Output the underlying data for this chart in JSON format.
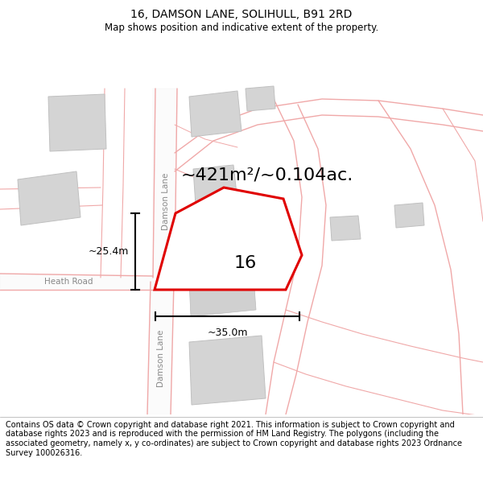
{
  "title": "16, DAMSON LANE, SOLIHULL, B91 2RD",
  "subtitle": "Map shows position and indicative extent of the property.",
  "footer_text": "Contains OS data © Crown copyright and database right 2021. This information is subject to Crown copyright and database rights 2023 and is reproduced with the permission of HM Land Registry. The polygons (including the associated geometry, namely x, y co-ordinates) are subject to Crown copyright and database rights 2023 Ordnance Survey 100026316.",
  "area_text": "~421m²/~0.104ac.",
  "label_16": "16",
  "dim_width": "~35.0m",
  "dim_height": "~25.4m",
  "street_label_upper": "Damson Lane",
  "street_label_lower": "Damson Lane",
  "heath_road_label": "Heath Road",
  "bg_color": "#ffffff",
  "map_bg": "#ffffff",
  "road_color": "#f0a8a8",
  "building_color": "#d4d4d4",
  "building_edge": "#c0c0c0",
  "plot_line_color": "#e00000",
  "plot_fill_color": "#ffffff",
  "dim_line_color": "#000000",
  "title_fontsize": 10,
  "subtitle_fontsize": 8.5,
  "footer_fontsize": 7.0,
  "area_fontsize": 16,
  "label_16_fontsize": 16,
  "street_fontsize": 7.5,
  "dim_fontsize": 9
}
